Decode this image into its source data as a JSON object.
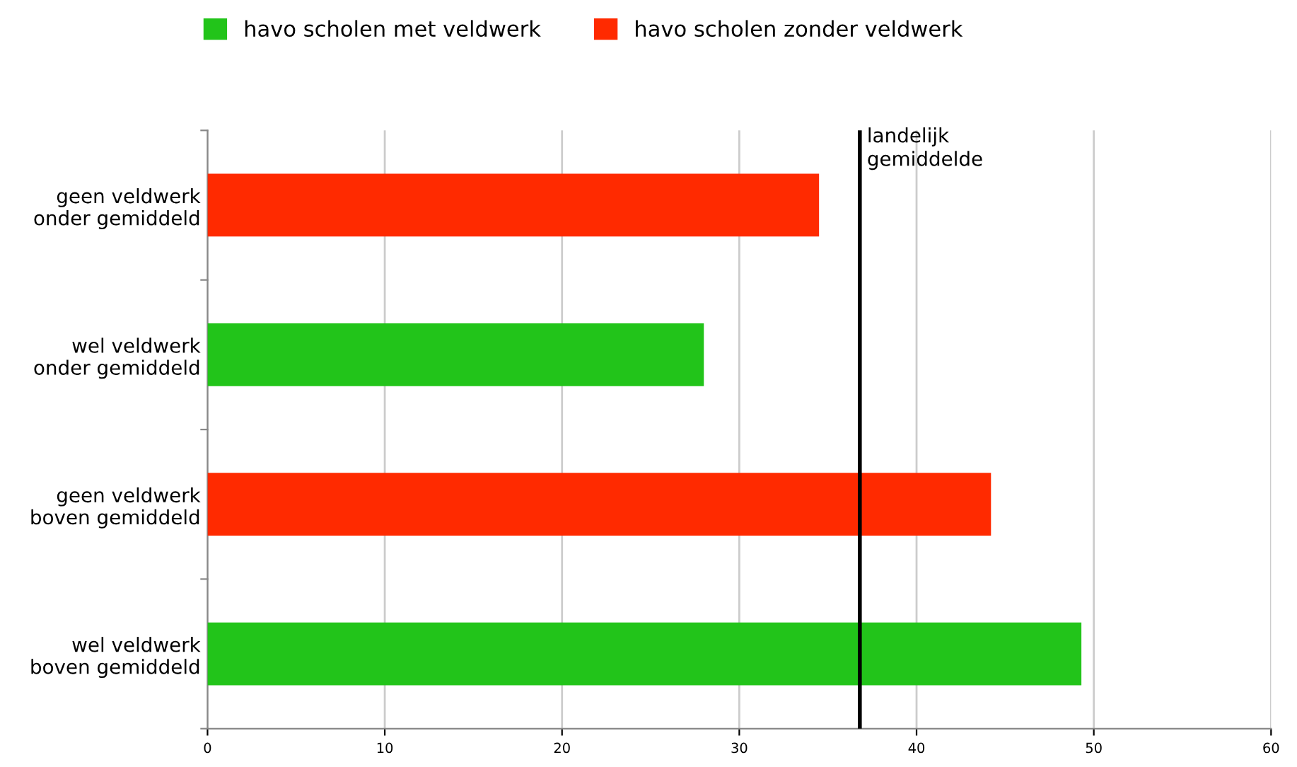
{
  "chart_data": {
    "type": "bar",
    "orientation": "horizontal",
    "categories": [
      "geen veldwerk\nonder gemiddeld",
      "wel veldwerk\nonder gemiddeld",
      "geen veldwerk\nboven gemiddeld",
      "wel veldwerk\nboven gemiddeld"
    ],
    "series": [
      {
        "name": "havo scholen met veldwerk",
        "color": "#22c41a",
        "values": [
          null,
          28.0,
          null,
          49.3
        ]
      },
      {
        "name": "havo scholen zonder veldwerk",
        "color": "#ff2a00",
        "values": [
          34.5,
          null,
          44.2,
          null
        ]
      }
    ],
    "xlim": [
      0,
      60
    ],
    "xticks": [
      0,
      10,
      20,
      30,
      40,
      50,
      60
    ],
    "grid": "x",
    "legend": "top",
    "ref_lines": [
      {
        "axis": "x",
        "value": 36.8,
        "label": "landelijk\ngemiddelde",
        "color": "#000000"
      }
    ]
  }
}
